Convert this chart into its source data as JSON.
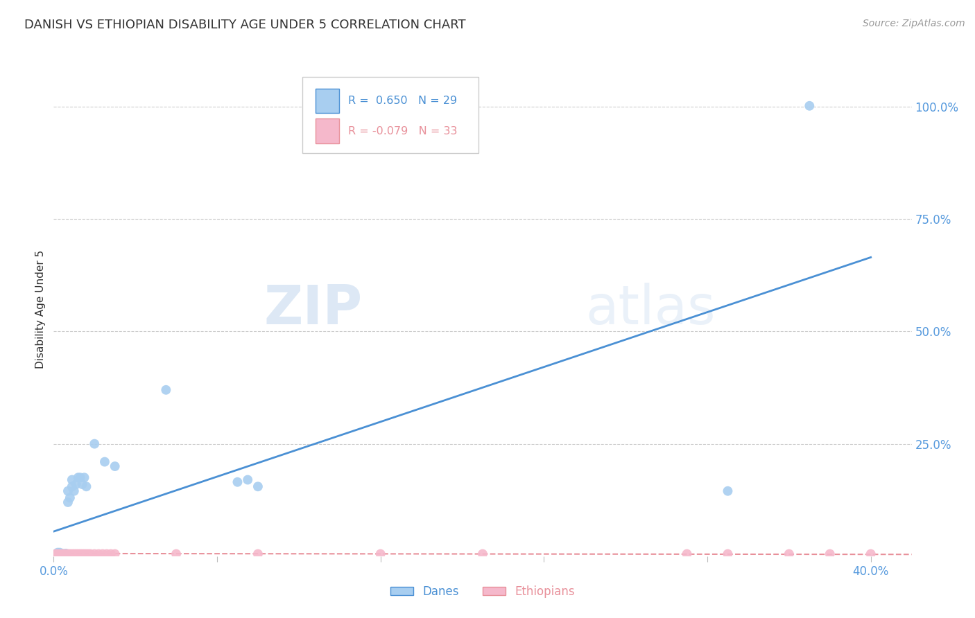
{
  "title": "DANISH VS ETHIOPIAN DISABILITY AGE UNDER 5 CORRELATION CHART",
  "source": "Source: ZipAtlas.com",
  "ylabel": "Disability Age Under 5",
  "x_tick_labels_left": "0.0%",
  "x_tick_labels_right": "40.0%",
  "y_tick_labels_right": [
    "100.0%",
    "75.0%",
    "50.0%",
    "25.0%"
  ],
  "legend_label_danes": "Danes",
  "legend_label_ethiopians": "Ethiopians",
  "danes_color": "#a8cef0",
  "ethiopians_color": "#f5b8cb",
  "danes_line_color": "#4a90d4",
  "ethiopians_line_color": "#e8909a",
  "danes_scatter_x": [
    0.002,
    0.003,
    0.004,
    0.005,
    0.006,
    0.007,
    0.007,
    0.008,
    0.009,
    0.009,
    0.01,
    0.011,
    0.012,
    0.013,
    0.014,
    0.015,
    0.016,
    0.02,
    0.025,
    0.03,
    0.055,
    0.09,
    0.095,
    0.1,
    0.33,
    0.37
  ],
  "danes_scatter_y": [
    0.008,
    0.008,
    0.006,
    0.005,
    0.006,
    0.12,
    0.145,
    0.13,
    0.155,
    0.17,
    0.145,
    0.16,
    0.175,
    0.175,
    0.16,
    0.175,
    0.155,
    0.25,
    0.21,
    0.2,
    0.37,
    0.165,
    0.17,
    0.155,
    0.145,
    1.002
  ],
  "ethiopians_scatter_x": [
    0.001,
    0.002,
    0.003,
    0.004,
    0.005,
    0.006,
    0.007,
    0.008,
    0.009,
    0.01,
    0.011,
    0.012,
    0.013,
    0.014,
    0.015,
    0.016,
    0.017,
    0.018,
    0.02,
    0.022,
    0.024,
    0.026,
    0.028,
    0.03,
    0.06,
    0.1,
    0.16,
    0.21,
    0.31,
    0.33,
    0.36,
    0.38,
    0.4
  ],
  "ethiopians_scatter_y": [
    0.005,
    0.005,
    0.005,
    0.005,
    0.005,
    0.005,
    0.005,
    0.005,
    0.005,
    0.005,
    0.005,
    0.005,
    0.005,
    0.005,
    0.005,
    0.005,
    0.005,
    0.005,
    0.005,
    0.005,
    0.005,
    0.005,
    0.005,
    0.005,
    0.005,
    0.005,
    0.005,
    0.005,
    0.005,
    0.005,
    0.005,
    0.005,
    0.005
  ],
  "xlim": [
    0.0,
    0.42
  ],
  "ylim": [
    0.0,
    1.1
  ],
  "danes_trendline_x": [
    0.0,
    0.4
  ],
  "danes_trendline_y": [
    0.055,
    0.665
  ],
  "ethiopians_trendline_x": [
    0.0,
    0.42
  ],
  "ethiopians_trendline_y": [
    0.006,
    0.004
  ],
  "title_color": "#333333",
  "axis_color": "#bbbbbb",
  "grid_color": "#cccccc",
  "right_axis_color": "#5599dd",
  "watermark_zip": "ZIP",
  "watermark_atlas": "atlas",
  "background_color": "#ffffff"
}
